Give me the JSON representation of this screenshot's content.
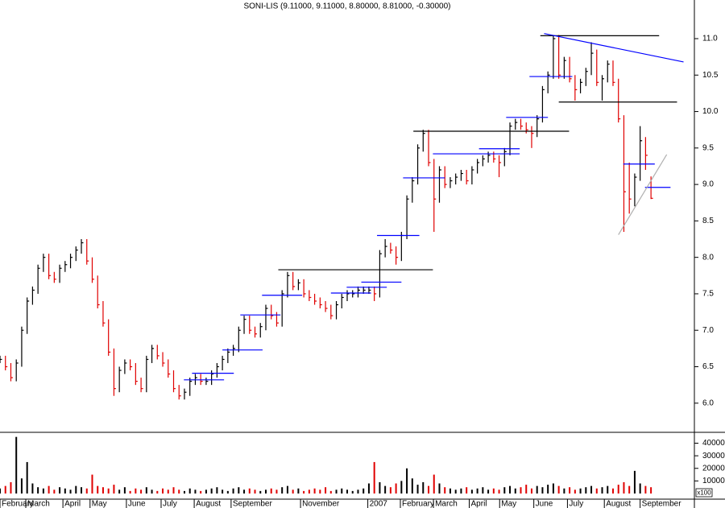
{
  "chart_data": [
    {
      "type": "ohlc",
      "title": "SONI-LIS (9.11000, 9.11000, 8.80000, 8.81000, -0.30000)",
      "xlim": [
        0,
        128
      ],
      "ylim": [
        5.6,
        11.53
      ],
      "yticks": [
        {
          "value": 6,
          "label": "6.0"
        },
        {
          "value": 6.5,
          "label": "6.5"
        },
        {
          "value": 7,
          "label": "7.0"
        },
        {
          "value": 7.5,
          "label": "7.5"
        },
        {
          "value": 8,
          "label": "8.0"
        },
        {
          "value": 8.5,
          "label": "8.5"
        },
        {
          "value": 9,
          "label": "9.0"
        },
        {
          "value": 9.5,
          "label": "9.5"
        },
        {
          "value": 10,
          "label": "10.0"
        },
        {
          "value": 10.5,
          "label": "10.5"
        },
        {
          "value": 11,
          "label": "11.0"
        }
      ],
      "up_color": "#000000",
      "down_color": "#e00000",
      "close": [
        6.6,
        6.5,
        6.35,
        6.55,
        7.0,
        7.4,
        7.55,
        7.85,
        8.0,
        7.75,
        7.7,
        7.85,
        7.9,
        8.0,
        8.1,
        8.2,
        7.95,
        7.7,
        7.35,
        7.1,
        6.7,
        6.2,
        6.45,
        6.55,
        6.5,
        6.3,
        6.2,
        6.6,
        6.75,
        6.65,
        6.55,
        6.4,
        6.2,
        6.1,
        6.15,
        6.3,
        6.35,
        6.3,
        6.3,
        6.4,
        6.5,
        6.6,
        6.7,
        6.75,
        7.0,
        7.15,
        7.0,
        6.95,
        7.05,
        7.3,
        7.2,
        7.1,
        7.5,
        7.75,
        7.6,
        7.65,
        7.5,
        7.45,
        7.4,
        7.35,
        7.3,
        7.2,
        7.35,
        7.45,
        7.5,
        7.5,
        7.55,
        7.55,
        7.55,
        7.5,
        8.05,
        8.15,
        8.1,
        8.0,
        8.3,
        8.8,
        9.05,
        9.5,
        9.7,
        9.3,
        8.8,
        9.2,
        9.0,
        9.05,
        9.1,
        9.15,
        9.05,
        9.2,
        9.3,
        9.35,
        9.4,
        9.35,
        9.3,
        9.45,
        9.8,
        9.85,
        9.8,
        9.75,
        9.7,
        9.9,
        10.3,
        10.5,
        11.0,
        10.5,
        10.7,
        10.45,
        10.3,
        10.4,
        10.55,
        10.8,
        10.4,
        10.45,
        10.65,
        10.4,
        9.9,
        8.9,
        8.8,
        9.1,
        9.6,
        9.4,
        8.81
      ],
      "high": [
        6.65,
        6.65,
        6.55,
        6.6,
        7.05,
        7.45,
        7.6,
        7.9,
        8.05,
        8.05,
        7.8,
        7.9,
        7.95,
        8.05,
        8.15,
        8.25,
        8.25,
        8.0,
        7.75,
        7.4,
        7.15,
        6.75,
        6.5,
        6.6,
        6.6,
        6.55,
        6.35,
        6.65,
        6.8,
        6.8,
        6.7,
        6.6,
        6.45,
        6.25,
        6.2,
        6.35,
        6.4,
        6.4,
        6.35,
        6.45,
        6.55,
        6.65,
        6.75,
        6.8,
        7.05,
        7.2,
        7.2,
        7.05,
        7.1,
        7.35,
        7.35,
        7.25,
        7.55,
        7.8,
        7.8,
        7.7,
        7.7,
        7.55,
        7.5,
        7.45,
        7.4,
        7.35,
        7.4,
        7.5,
        7.55,
        7.55,
        7.6,
        7.6,
        7.6,
        7.6,
        8.1,
        8.25,
        8.2,
        8.15,
        8.35,
        8.85,
        9.1,
        9.55,
        9.75,
        9.75,
        9.35,
        9.25,
        9.25,
        9.1,
        9.15,
        9.2,
        9.2,
        9.25,
        9.35,
        9.4,
        9.45,
        9.45,
        9.4,
        9.5,
        9.85,
        9.9,
        9.9,
        9.85,
        9.8,
        9.95,
        10.35,
        10.55,
        11.05,
        11.05,
        10.75,
        10.75,
        10.5,
        10.45,
        10.6,
        10.95,
        10.85,
        10.5,
        10.7,
        10.7,
        10.45,
        9.95,
        9.3,
        9.15,
        9.8,
        9.65,
        9.11
      ],
      "low": [
        6.55,
        6.45,
        6.3,
        6.3,
        6.5,
        6.95,
        7.35,
        7.5,
        7.8,
        7.7,
        7.65,
        7.65,
        7.8,
        7.85,
        7.95,
        8.05,
        7.9,
        7.65,
        7.3,
        7.05,
        6.65,
        6.1,
        6.15,
        6.4,
        6.45,
        6.25,
        6.15,
        6.15,
        6.55,
        6.6,
        6.5,
        6.35,
        6.15,
        6.05,
        6.05,
        6.1,
        6.25,
        6.25,
        6.25,
        6.25,
        6.35,
        6.45,
        6.55,
        6.65,
        6.7,
        6.95,
        6.95,
        6.9,
        6.9,
        7.0,
        7.15,
        7.05,
        7.05,
        7.45,
        7.55,
        7.55,
        7.45,
        7.4,
        7.35,
        7.3,
        7.25,
        7.15,
        7.15,
        7.3,
        7.4,
        7.45,
        7.45,
        7.5,
        7.5,
        7.4,
        7.45,
        8.0,
        8.05,
        7.9,
        7.95,
        8.25,
        8.75,
        9.0,
        9.45,
        9.25,
        8.35,
        8.75,
        8.95,
        8.95,
        9.0,
        9.05,
        9.0,
        9.0,
        9.15,
        9.25,
        9.3,
        9.3,
        9.1,
        9.25,
        9.4,
        9.75,
        9.75,
        9.7,
        9.5,
        9.65,
        9.85,
        10.25,
        10.45,
        10.45,
        10.45,
        10.4,
        10.15,
        10.25,
        10.35,
        10.5,
        10.35,
        10.15,
        10.4,
        10.35,
        9.85,
        8.35,
        8.6,
        8.7,
        9.05,
        9.2,
        8.8
      ],
      "trendlines": [
        {
          "color": "#000000",
          "x": [
            99.6,
            121.5
          ],
          "y": [
            11.04,
            11.04
          ]
        },
        {
          "color": "#000000",
          "x": [
            103,
            124.8
          ],
          "y": [
            10.13,
            10.13
          ]
        },
        {
          "color": "#000000",
          "x": [
            76.2,
            104.9
          ],
          "y": [
            9.73,
            9.73
          ]
        },
        {
          "color": "#000000",
          "x": [
            51.3,
            79.8
          ],
          "y": [
            7.83,
            7.83
          ]
        },
        {
          "color": "#0000ff",
          "x": [
            100.3,
            126
          ],
          "y": [
            11.07,
            10.68
          ]
        },
        {
          "color": "#0000ff",
          "x": [
            33.9,
            41.3
          ],
          "y": [
            6.32,
            6.32
          ]
        },
        {
          "color": "#0000ff",
          "x": [
            35.4,
            43.1
          ],
          "y": [
            6.41,
            6.41
          ]
        },
        {
          "color": "#0000ff",
          "x": [
            41,
            48.4
          ],
          "y": [
            6.73,
            6.73
          ]
        },
        {
          "color": "#0000ff",
          "x": [
            44.3,
            51.7
          ],
          "y": [
            7.21,
            7.21
          ]
        },
        {
          "color": "#0000ff",
          "x": [
            48.3,
            55.7
          ],
          "y": [
            7.48,
            7.48
          ]
        },
        {
          "color": "#0000ff",
          "x": [
            61,
            68.4
          ],
          "y": [
            7.51,
            7.51
          ]
        },
        {
          "color": "#0000ff",
          "x": [
            63.9,
            71.3
          ],
          "y": [
            7.59,
            7.59
          ]
        },
        {
          "color": "#0000ff",
          "x": [
            66.6,
            74
          ],
          "y": [
            7.66,
            7.66
          ]
        },
        {
          "color": "#0000ff",
          "x": [
            69.5,
            77.3
          ],
          "y": [
            8.3,
            8.3
          ]
        },
        {
          "color": "#0000ff",
          "x": [
            74.3,
            82
          ],
          "y": [
            9.09,
            9.09
          ]
        },
        {
          "color": "#0000ff",
          "x": [
            79.8,
            95.8
          ],
          "y": [
            9.42,
            9.42
          ]
        },
        {
          "color": "#0000ff",
          "x": [
            88.3,
            95.8
          ],
          "y": [
            9.49,
            9.49
          ]
        },
        {
          "color": "#0000ff",
          "x": [
            93.3,
            101
          ],
          "y": [
            9.92,
            9.92
          ]
        },
        {
          "color": "#0000ff",
          "x": [
            97.6,
            105.5
          ],
          "y": [
            10.48,
            10.48
          ]
        },
        {
          "color": "#0000ff",
          "x": [
            114.9,
            120.7
          ],
          "y": [
            9.28,
            9.28
          ]
        },
        {
          "color": "#0000ff",
          "x": [
            118.9,
            123.6
          ],
          "y": [
            8.96,
            8.96
          ]
        },
        {
          "color": "#b0b0b0",
          "x": [
            114,
            122.9
          ],
          "y": [
            8.31,
            9.41
          ]
        }
      ]
    },
    {
      "type": "bar",
      "xlim": [
        0,
        128
      ],
      "ylim": [
        0,
        48000
      ],
      "yticks": [
        10000,
        20000,
        30000,
        40000
      ],
      "unit_label": "x100",
      "xticks": [
        {
          "value": 0,
          "label": "February"
        },
        {
          "value": 4.75,
          "label": "March"
        },
        {
          "value": 11.6,
          "label": "April"
        },
        {
          "value": 16.6,
          "label": "May"
        },
        {
          "value": 23.3,
          "label": "June"
        },
        {
          "value": 29.7,
          "label": "July"
        },
        {
          "value": 35.8,
          "label": "August"
        },
        {
          "value": 42.6,
          "label": "September"
        },
        {
          "value": 55.4,
          "label": "November"
        },
        {
          "value": 67.8,
          "label": "2007"
        },
        {
          "value": 73.8,
          "label": "February"
        },
        {
          "value": 79.9,
          "label": "March"
        },
        {
          "value": 86.5,
          "label": "April"
        },
        {
          "value": 92.1,
          "label": "May"
        },
        {
          "value": 98.4,
          "label": "June"
        },
        {
          "value": 104.6,
          "label": "July"
        },
        {
          "value": 111.4,
          "label": "August"
        },
        {
          "value": 118,
          "label": "September"
        }
      ],
      "values": [
        4000,
        6000,
        9000,
        45000,
        12000,
        25000,
        8000,
        5000,
        4000,
        6000,
        3000,
        5000,
        4000,
        3000,
        6000,
        5000,
        4000,
        15000,
        6000,
        5000,
        4000,
        7000,
        3000,
        5000,
        2000,
        4000,
        3000,
        5000,
        3000,
        2000,
        4000,
        3000,
        5000,
        3000,
        2000,
        4000,
        3000,
        2000,
        3000,
        4000,
        5000,
        3000,
        2000,
        4000,
        5000,
        3000,
        4000,
        3000,
        2000,
        3000,
        4000,
        3000,
        5000,
        6000,
        3000,
        4000,
        2000,
        3000,
        4000,
        3000,
        5000,
        2000,
        3000,
        4000,
        3000,
        2000,
        3000,
        4000,
        8000,
        25000,
        9000,
        6000,
        5000,
        8000,
        10000,
        20000,
        12000,
        7000,
        9000,
        6000,
        15000,
        8000,
        5000,
        4000,
        3000,
        4000,
        5000,
        3000,
        4000,
        5000,
        3000,
        4000,
        3000,
        5000,
        6000,
        4000,
        5000,
        7000,
        4000,
        6000,
        5000,
        7000,
        8000,
        6000,
        4000,
        5000,
        3000,
        4000,
        5000,
        6000,
        4000,
        5000,
        6000,
        4000,
        7000,
        9000,
        6000,
        18000,
        8000,
        6000,
        5000
      ]
    }
  ]
}
